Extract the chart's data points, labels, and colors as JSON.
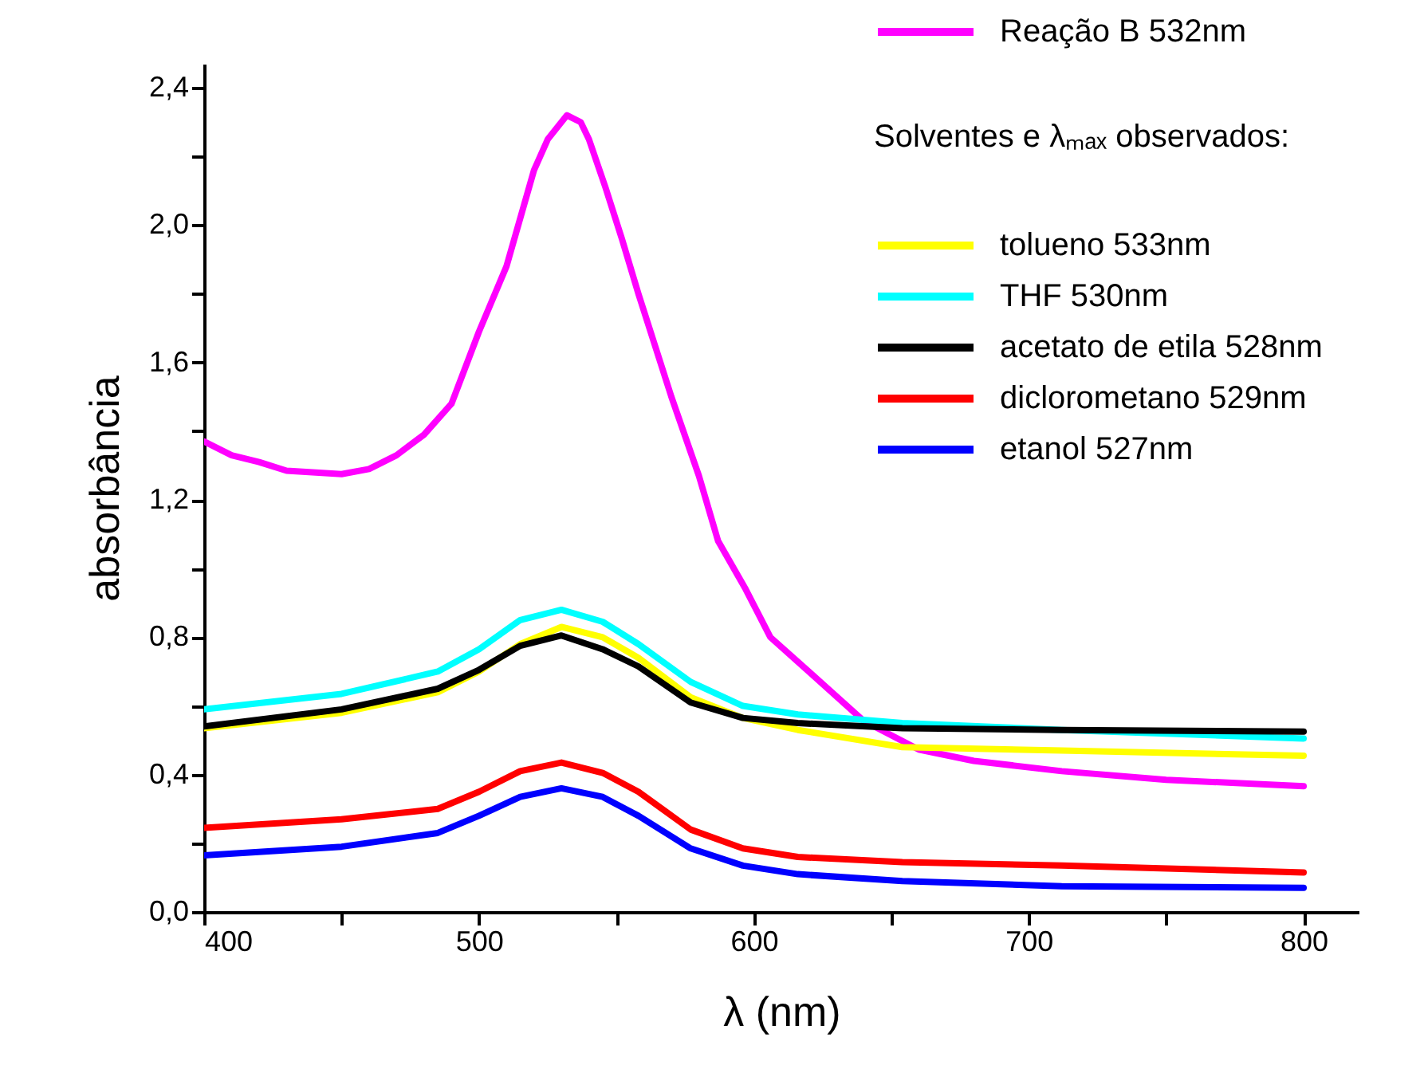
{
  "chart_data": {
    "type": "line",
    "xlabel": "λ (nm)",
    "ylabel": "absorbância",
    "legend_title": "Solventes e λₘₐₓ observados:",
    "xlim": [
      400,
      820
    ],
    "ylim": [
      0,
      2.47
    ],
    "xticks": [
      400,
      {
        "value": 450,
        "label": null
      },
      500,
      {
        "value": 550,
        "label": null
      },
      600,
      {
        "value": 650,
        "label": null
      },
      700,
      {
        "value": 750,
        "label": null
      },
      800
    ],
    "yticks": [
      {
        "value": 0,
        "label": "0,0"
      },
      {
        "value": 0.2,
        "label": null
      },
      {
        "value": 0.4,
        "label": "0,4"
      },
      {
        "value": 0.6,
        "label": null
      },
      {
        "value": 0.8,
        "label": "0,8"
      },
      {
        "value": 1.0,
        "label": null
      },
      {
        "value": 1.2,
        "label": "1,2"
      },
      {
        "value": 1.4,
        "label": null
      },
      {
        "value": 1.6,
        "label": "1,6"
      },
      {
        "value": 1.8,
        "label": null
      },
      {
        "value": 2.0,
        "label": "2,0"
      },
      {
        "value": 2.2,
        "label": null
      },
      {
        "value": 2.4,
        "label": "2,4"
      }
    ],
    "grid": false,
    "legend": "top right",
    "series": [
      {
        "name": "Reação B 532nm",
        "color": "#ff00ff",
        "x": [
          400,
          410,
          420,
          430,
          450,
          460,
          470,
          480,
          490,
          500,
          510,
          520,
          525,
          532,
          537,
          540,
          546,
          552,
          558,
          570,
          580,
          587,
          597,
          606,
          620,
          640,
          660,
          680,
          712,
          750,
          800
        ],
        "values": [
          1.37,
          1.33,
          1.31,
          1.285,
          1.275,
          1.29,
          1.33,
          1.39,
          1.48,
          1.69,
          1.88,
          2.16,
          2.25,
          2.32,
          2.3,
          2.25,
          2.11,
          1.96,
          1.8,
          1.5,
          1.27,
          1.08,
          0.94,
          0.8,
          0.7,
          0.556,
          0.473,
          0.44,
          0.41,
          0.385,
          0.366
        ]
      },
      {
        "name": "tolueno 533nm",
        "color": "#ffff00",
        "x": [
          400,
          450,
          485,
          500,
          515,
          530,
          545,
          558,
          577,
          596,
          616,
          654,
          712,
          800
        ],
        "values": [
          0.535,
          0.58,
          0.64,
          0.7,
          0.78,
          0.83,
          0.8,
          0.74,
          0.625,
          0.565,
          0.53,
          0.48,
          0.47,
          0.455
        ]
      },
      {
        "name": "THF 530nm",
        "color": "#00ffff",
        "x": [
          400,
          450,
          485,
          500,
          515,
          530,
          545,
          558,
          577,
          596,
          616,
          654,
          712,
          800
        ],
        "values": [
          0.59,
          0.635,
          0.7,
          0.765,
          0.85,
          0.88,
          0.845,
          0.78,
          0.67,
          0.6,
          0.575,
          0.55,
          0.53,
          0.505
        ]
      },
      {
        "name": "acetato  de etila 528nm",
        "color": "#000000",
        "x": [
          400,
          450,
          485,
          500,
          515,
          530,
          545,
          558,
          577,
          596,
          616,
          654,
          712,
          800
        ],
        "values": [
          0.54,
          0.59,
          0.65,
          0.705,
          0.775,
          0.805,
          0.765,
          0.715,
          0.61,
          0.565,
          0.55,
          0.535,
          0.53,
          0.525
        ]
      },
      {
        "name": "diclorometano 529nm",
        "color": "#ff0000",
        "x": [
          400,
          450,
          485,
          500,
          515,
          530,
          545,
          558,
          577,
          596,
          616,
          654,
          712,
          800
        ],
        "values": [
          0.245,
          0.27,
          0.3,
          0.35,
          0.41,
          0.435,
          0.405,
          0.35,
          0.24,
          0.185,
          0.16,
          0.145,
          0.135,
          0.115
        ]
      },
      {
        "name": "etanol 527nm",
        "color": "#0000ff",
        "x": [
          400,
          450,
          485,
          500,
          515,
          530,
          545,
          558,
          577,
          596,
          616,
          654,
          712,
          800
        ],
        "values": [
          0.165,
          0.19,
          0.23,
          0.28,
          0.335,
          0.36,
          0.335,
          0.28,
          0.185,
          0.135,
          0.11,
          0.09,
          0.075,
          0.07
        ]
      }
    ]
  }
}
